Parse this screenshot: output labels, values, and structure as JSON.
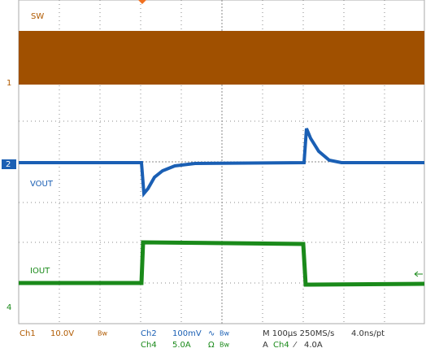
{
  "screen": {
    "ch1": {
      "label": "SW",
      "marker": "1"
    },
    "ch2": {
      "label": "VOUT",
      "marker": "2"
    },
    "ch4": {
      "label": "IOUT",
      "marker": "4"
    }
  },
  "status": {
    "row1": {
      "ch": "Ch1",
      "scale": "10.0V",
      "bw": "Bw",
      "ch_b": "Ch2",
      "scale_b": "100mV",
      "coupling_b": "∿",
      "bw_b": "Bw",
      "timebase": "M 100µs 250MS/s",
      "resolution": "4.0ns/pt"
    },
    "row2": {
      "ch_b": "Ch4",
      "scale_b": "5.0A",
      "coupling_b": "Ω",
      "bw_b": "Bw",
      "trigger_mode": "A",
      "trigger_src": "Ch4",
      "trigger_slope": "⁄",
      "trigger_level": "4.0A"
    }
  }
}
